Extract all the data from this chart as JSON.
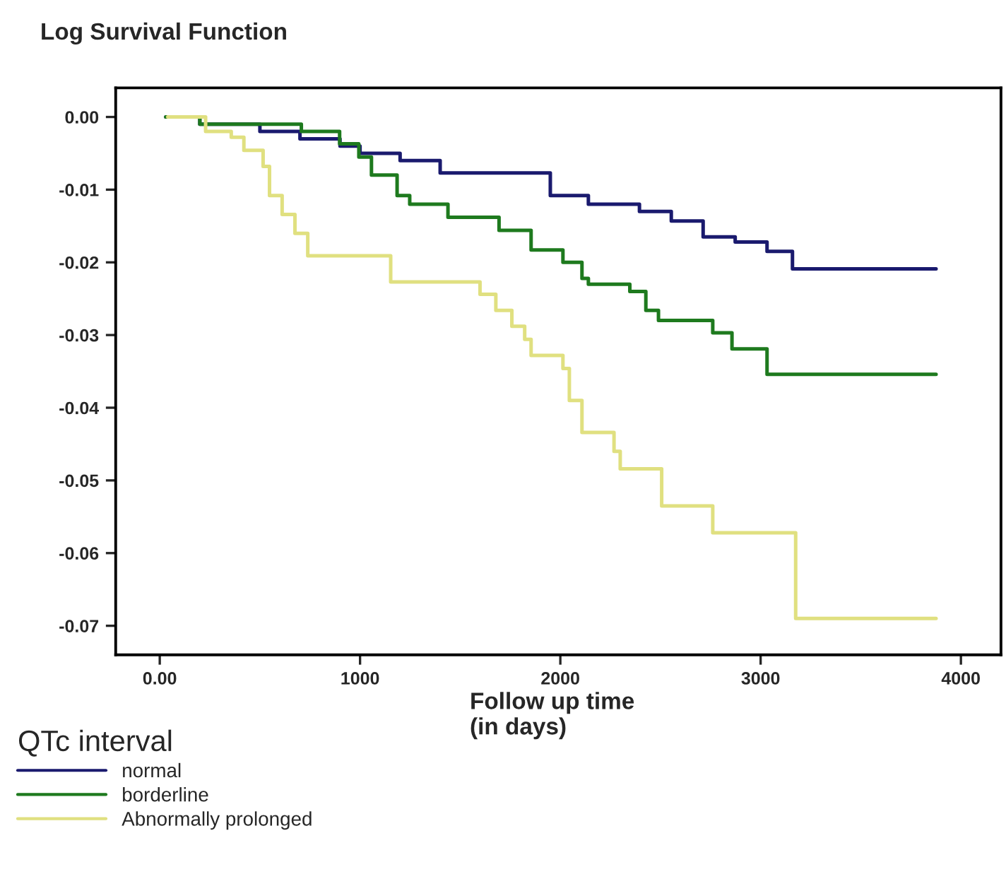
{
  "chart_data": {
    "type": "step",
    "title": "Log Survival Function",
    "xlabel": "Follow up time\n(in days)",
    "legend_title": "QTc interval",
    "legend": "bottom",
    "xlim": [
      -220,
      4200
    ],
    "ylim": [
      -0.074,
      0.004
    ],
    "xticks": [
      {
        "value": 0,
        "label": "0.00"
      },
      1000,
      2000,
      3000,
      4000
    ],
    "yticks": [
      {
        "value": 0,
        "label": "0.00"
      },
      -0.01,
      -0.02,
      -0.03,
      -0.04,
      -0.05,
      -0.06,
      -0.07
    ],
    "grid": false,
    "series": [
      {
        "name": "normal",
        "color": "#1a1a6e",
        "x": [
          30,
          200,
          500,
          700,
          900,
          1000,
          1200,
          1400,
          1950,
          2140,
          2395,
          2554,
          2713,
          2873,
          3032,
          3159,
          3876
        ],
        "values": [
          0,
          -0.001,
          -0.002,
          -0.003,
          -0.004,
          -0.005,
          -0.006,
          -0.0077,
          -0.0108,
          -0.012,
          -0.013,
          -0.0143,
          -0.0165,
          -0.0172,
          -0.0185,
          -0.0209,
          -0.0209
        ]
      },
      {
        "name": "borderline",
        "color": "#1e7a1e",
        "x": [
          30,
          200,
          580,
          707,
          898,
          994,
          1057,
          1185,
          1248,
          1439,
          1694,
          1854,
          2013,
          2108,
          2140,
          2347,
          2427,
          2490,
          2761,
          2857,
          3032,
          3876
        ],
        "values": [
          0,
          -0.001,
          -0.001,
          -0.002,
          -0.0037,
          -0.0055,
          -0.008,
          -0.0108,
          -0.012,
          -0.0138,
          -0.0156,
          -0.0183,
          -0.02,
          -0.0222,
          -0.023,
          -0.024,
          -0.0266,
          -0.028,
          -0.0297,
          -0.0319,
          -0.0354,
          -0.0354
        ]
      },
      {
        "name": "Abnormally prolonged",
        "color": "#e0e080",
        "x": [
          40,
          229,
          357,
          420,
          516,
          548,
          611,
          675,
          739,
          1153,
          1599,
          1678,
          1758,
          1822,
          1854,
          2013,
          2045,
          2108,
          2268,
          2299,
          2506,
          2761,
          3175,
          3876
        ],
        "values": [
          0,
          -0.002,
          -0.0028,
          -0.0046,
          -0.0068,
          -0.0108,
          -0.0134,
          -0.016,
          -0.0191,
          -0.0227,
          -0.0244,
          -0.0266,
          -0.0288,
          -0.0306,
          -0.0328,
          -0.0346,
          -0.039,
          -0.0434,
          -0.046,
          -0.0484,
          -0.0535,
          -0.0572,
          -0.069,
          -0.069
        ]
      }
    ]
  }
}
